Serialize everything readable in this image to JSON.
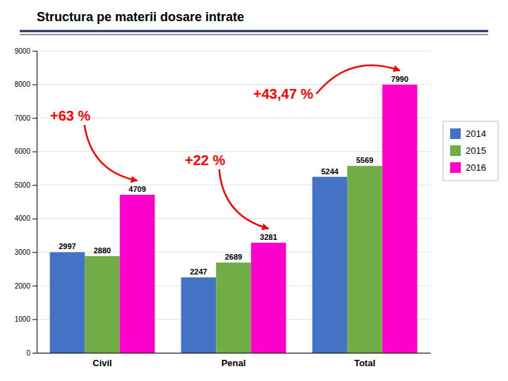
{
  "chart_data": {
    "type": "bar",
    "title": "Structura pe materii dosare intrate",
    "categories": [
      "Civil",
      "Penal",
      "Total"
    ],
    "series": [
      {
        "name": "2014",
        "color": "#4472C4",
        "values": [
          2997,
          2247,
          5244
        ]
      },
      {
        "name": "2015",
        "color": "#70AD47",
        "values": [
          2880,
          2689,
          5569
        ]
      },
      {
        "name": "2016",
        "color": "#FF00CC",
        "values": [
          4709,
          3281,
          7990
        ]
      }
    ],
    "ylim": [
      0,
      9000
    ],
    "yticks": [
      0,
      1000,
      2000,
      3000,
      4000,
      5000,
      6000,
      7000,
      8000,
      9000
    ],
    "grid": true,
    "legend": "right",
    "data_labels": true,
    "annotations": [
      {
        "text": "+63 %",
        "category": "Civil",
        "series": "2016"
      },
      {
        "text": "+22 %",
        "category": "Penal",
        "series": "2016"
      },
      {
        "text": "+43,47 %",
        "category": "Total",
        "series": "2016"
      }
    ]
  }
}
